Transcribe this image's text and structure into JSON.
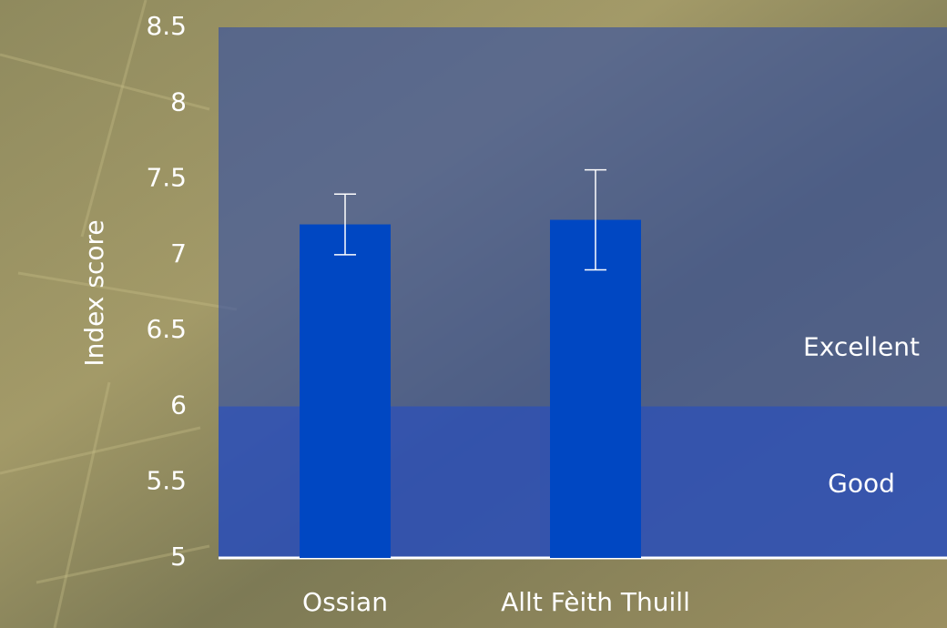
{
  "chart_data": {
    "type": "bar",
    "y_label": "Index score",
    "categories": [
      "Ossian",
      "Allt Fèith Thuill"
    ],
    "values": [
      7.2,
      7.23
    ],
    "errors": [
      0.2,
      0.33
    ],
    "color": "#0047c2",
    "ylim": [
      5,
      8.5
    ],
    "yticks": [
      5,
      5.5,
      6,
      6.5,
      7,
      7.5,
      8,
      8.5
    ],
    "bands": [
      {
        "label": "Excellent",
        "from": 6,
        "to": 8.5,
        "color": "rgba(45,75,165,0.6)"
      },
      {
        "label": "Good",
        "from": 5,
        "to": 6,
        "color": "rgba(35,75,190,0.82)"
      }
    ]
  }
}
